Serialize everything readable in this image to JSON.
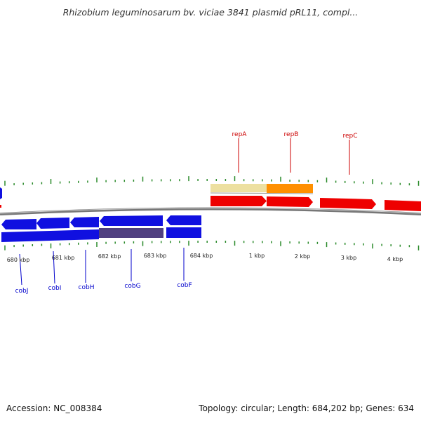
{
  "title": "Rhizobium leguminosarum bv. viciae 3841 plasmid pRL11, compl...",
  "footer": {
    "accession": "Accession: NC_008384",
    "summary": "Topology: circular; Length: 684,202 bp; Genes: 634"
  },
  "colors": {
    "blue_gene": "#1010e0",
    "dark_blue_gene": "#504080",
    "red_gene": "#ee0000",
    "orange_gene": "#ff9000",
    "pale_yellow_gene": "#ede0a0",
    "tick": "#2a8a2a",
    "backbone": "#808080",
    "label_blue": "#0000cc",
    "label_red": "#cc0000"
  },
  "icons": {
    "tick_mark": "tick-mark"
  },
  "scale_labels": [
    "680 kbp",
    "681 kbp",
    "682 kbp",
    "683 kbp",
    "684 kbp",
    "1 kbp",
    "2 kbp",
    "3 kbp",
    "4 kbp"
  ],
  "gene_labels": {
    "top": [
      "repA",
      "repB",
      "repC"
    ],
    "bottom": [
      "cobJ",
      "cobI",
      "cobH",
      "cobG",
      "cobF"
    ]
  }
}
